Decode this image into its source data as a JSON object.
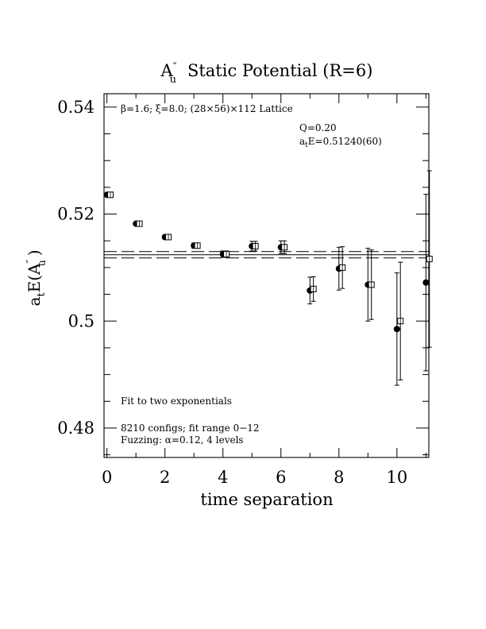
{
  "chart_data": {
    "type": "scatter",
    "title": {
      "symbol": "A",
      "symbol_sup": "″",
      "symbol_sub": "u",
      "text": "Static Potential (R=6)"
    },
    "xlabel": "time separation",
    "ylabel": {
      "prefix": "a",
      "prefix_sub": "t",
      "main": "E(A",
      "main_sup": "″",
      "main_sub": "u",
      "suffix": ")"
    },
    "xlim": [
      -0.1,
      11.1
    ],
    "ylim": [
      0.4745,
      0.5425
    ],
    "x_ticks": [
      0,
      2,
      4,
      6,
      8,
      10
    ],
    "x_tick_labels": [
      "0",
      "2",
      "4",
      "6",
      "8",
      "10"
    ],
    "y_ticks": [
      0.48,
      0.5,
      0.52,
      0.54
    ],
    "y_tick_labels": [
      "0.48",
      "0.5",
      "0.52",
      "0.54"
    ],
    "grid": false,
    "annotations": {
      "lattice": "β=1.6; ξ=8.0; (28×56)×112 Lattice",
      "q_value": "Q=0.20",
      "energy": {
        "prefix": "a",
        "sub": "t",
        "rest": "E=0.51240(60)"
      },
      "fit_type": "Fit to two exponentials",
      "configs": "8210 configs; fit range 0−12",
      "fuzzing": "Fuzzing: α=0.12, 4 levels"
    },
    "fit_band": {
      "center": 0.5124,
      "error": 0.0006
    },
    "series": [
      {
        "marker": "filled-circle",
        "x": [
          0,
          1,
          2,
          3,
          4,
          5,
          6,
          7,
          8,
          9,
          10,
          11
        ],
        "y": [
          0.5236,
          0.5182,
          0.5157,
          0.5141,
          0.5125,
          0.514,
          0.5138,
          0.5057,
          0.5098,
          0.5068,
          0.4985,
          0.5072
        ],
        "err": [
          0.0002,
          0.0003,
          0.0004,
          0.0005,
          0.0006,
          0.0009,
          0.0012,
          0.0025,
          0.004,
          0.0068,
          0.0105,
          0.0165
        ]
      },
      {
        "marker": "open-square",
        "x": [
          0.12,
          1.12,
          2.12,
          3.12,
          4.12,
          5.12,
          6.12,
          7.12,
          8.12,
          9.12,
          10.12,
          11.12
        ],
        "y": [
          0.5236,
          0.5182,
          0.5157,
          0.5141,
          0.5125,
          0.514,
          0.5138,
          0.506,
          0.51,
          0.5068,
          0.5,
          0.5116
        ],
        "err": [
          0.0002,
          0.0003,
          0.0004,
          0.0005,
          0.0006,
          0.0009,
          0.0012,
          0.0023,
          0.0039,
          0.0065,
          0.011,
          0.0165
        ]
      }
    ]
  }
}
